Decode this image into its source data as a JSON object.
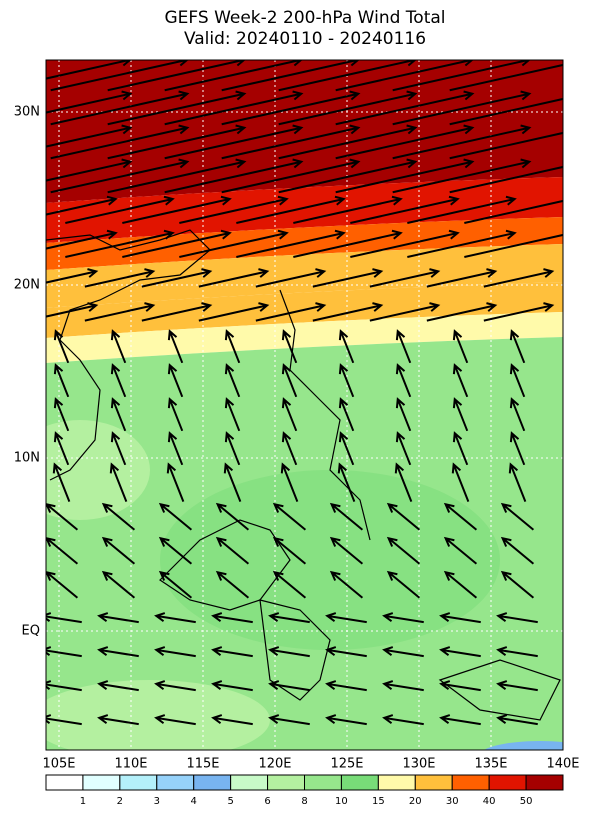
{
  "header": {
    "title": "GEFS Week-2 200-hPa Wind Total",
    "subtitle": "Valid: 20240110 - 20240116"
  },
  "map": {
    "x_labels": [
      "105E",
      "110E",
      "115E",
      "120E",
      "125E",
      "130E",
      "135E",
      "140E"
    ],
    "y_labels": [
      "30N",
      "20N",
      "10N",
      "EQ"
    ]
  },
  "colorbar": {
    "labels": [
      "1",
      "2",
      "3",
      "4",
      "5",
      "6",
      "8",
      "10",
      "15",
      "20",
      "30",
      "40",
      "50"
    ],
    "colors": [
      "#ffffff",
      "#e1ffff",
      "#b4f0fa",
      "#96d2fa",
      "#78b4f0",
      "#c8fac8",
      "#b4f0a0",
      "#96e68c",
      "#78dc78",
      "#fffaaa",
      "#ffc03c",
      "#ff6000",
      "#e11400",
      "#a50000"
    ]
  }
}
